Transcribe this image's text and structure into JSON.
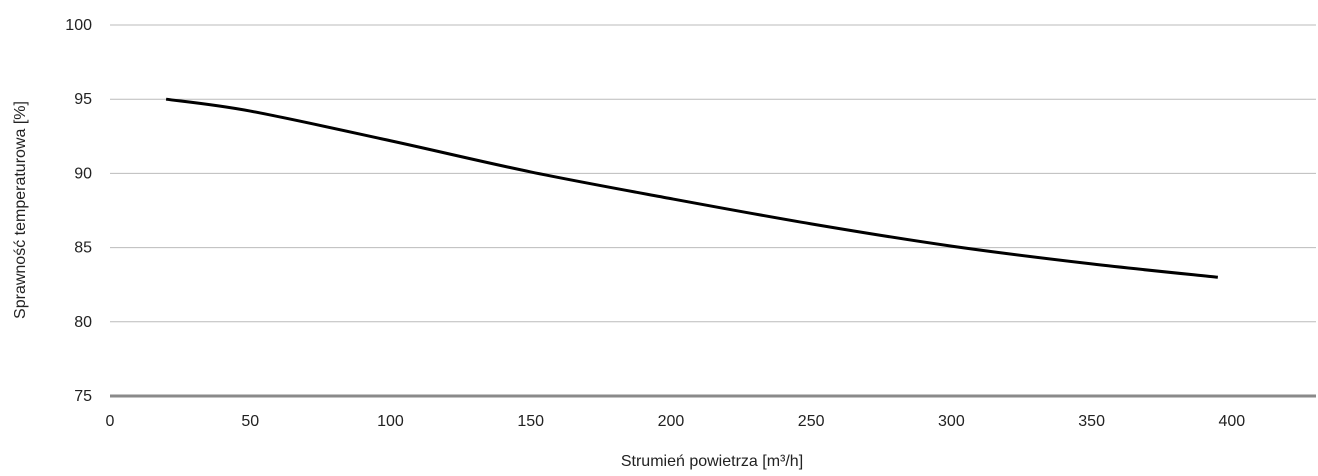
{
  "chart_data": {
    "type": "line",
    "title": "",
    "xlabel": "Strumień powietrza [m³/h]",
    "ylabel": "Sprawność temperaturowa [%]",
    "xlim": [
      0,
      430
    ],
    "ylim": [
      75,
      100
    ],
    "x_ticks": [
      0,
      50,
      100,
      150,
      200,
      250,
      300,
      350,
      400
    ],
    "y_ticks": [
      75,
      80,
      85,
      90,
      95,
      100
    ],
    "grid": "horizontal",
    "legend": "none",
    "series": [
      {
        "x": [
          20,
          50,
          100,
          150,
          200,
          250,
          300,
          350,
          395
        ],
        "y": [
          95.0,
          94.2,
          92.2,
          90.1,
          88.3,
          86.6,
          85.1,
          83.9,
          83.0
        ],
        "color": "#000000"
      }
    ],
    "colors": {
      "grid": "#bbbbbb",
      "baseline": "#8a8a8a",
      "line": "#000000",
      "text": "#222222"
    }
  }
}
